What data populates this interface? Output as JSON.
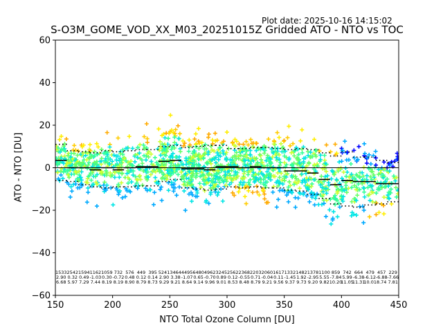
{
  "header": {
    "plot_date": "Plot date: 2025-10-16 14:15:02",
    "title": "S-O3M_GOME_VOD_XX_M03_20251015Z Gridded ATO - NTO vs TOC"
  },
  "colors": {
    "scatter_palette": [
      "#0000ff",
      "#00aaff",
      "#00e5e5",
      "#33ff99",
      "#66ff66",
      "#ccff33",
      "#ffee00",
      "#ffcc00",
      "#ffaa00"
    ],
    "median_line": "#000000",
    "percentile_line": "#000000",
    "zero_line": "#000000"
  },
  "chart_data": {
    "type": "scatter",
    "title": "S-O3M_GOME_VOD_XX_M03_20251015Z Gridded ATO - NTO vs TOC",
    "xlabel": "NTO Total Ozone Column [DU]",
    "ylabel": "ATO - NTO [DU]",
    "xlim": [
      150,
      450
    ],
    "ylim": [
      -60,
      60
    ],
    "xticks": [
      150,
      200,
      250,
      300,
      350,
      400,
      450
    ],
    "yticks": [
      -60,
      -40,
      -20,
      0,
      20,
      40,
      60
    ],
    "bin_width": 10,
    "bin_centers": [
      155,
      165,
      175,
      185,
      195,
      205,
      215,
      225,
      235,
      245,
      255,
      265,
      275,
      285,
      295,
      305,
      315,
      325,
      335,
      345,
      355,
      365,
      375,
      385,
      395,
      405,
      415,
      425,
      435,
      445
    ],
    "counts": [
      "1533",
      "2542",
      "1594",
      "1162",
      "1059",
      "732",
      "576",
      "449",
      "395",
      "5241",
      "3464",
      "4495",
      "6480",
      "4962",
      "3245",
      "2562",
      "2368",
      "2203",
      "2060",
      "1617",
      "1332",
      "1482",
      "1378",
      "1100",
      "859",
      "742",
      "664",
      "479",
      "457",
      "229"
    ],
    "means": [
      "2.90",
      "0.32",
      "0.49",
      "-1.03",
      "0.30",
      "-0.72",
      "0.48",
      "0.12",
      "0.14",
      "2.90",
      "3.38",
      "-1.07",
      "0.65",
      "-0.70",
      "0.89",
      "0.12",
      "-0.55",
      "0.71",
      "-0.04",
      "0.11",
      "-1.45",
      "1.92",
      "-2.95",
      "5.55",
      "-7.84",
      "5.99",
      "-6.38",
      "-6.12",
      "-6.88",
      "-7.66"
    ],
    "stdevs": [
      "6.68",
      "5.97",
      "7.29",
      "7.44",
      "8.19",
      "8.19",
      "8.90",
      "8.79",
      "8.73",
      "9.29",
      "9.21",
      "8.64",
      "9.14",
      "9.96",
      "9.01",
      "8.53",
      "8.48",
      "8.79",
      "9.21",
      "9.56",
      "9.37",
      "9.73",
      "9.20",
      "9.82",
      "10.20",
      "11.05",
      "11.31",
      "10.01",
      "8.74",
      "7.81"
    ],
    "median": [
      3.5,
      0.0,
      0.0,
      -1.0,
      0.0,
      -1.0,
      0.0,
      0.5,
      0.5,
      3.0,
      3.5,
      -0.5,
      -0.5,
      -1.0,
      0.5,
      0.5,
      0.0,
      0.5,
      0.0,
      0.0,
      -1.5,
      -1.5,
      -2.5,
      -5.5,
      -8.0,
      -6.0,
      -6.5,
      -6.5,
      -7.5,
      -7.5
    ],
    "p_upper": [
      11.0,
      8.0,
      7.5,
      7.0,
      8.0,
      7.5,
      8.0,
      8.5,
      8.5,
      10.0,
      10.5,
      9.5,
      10.0,
      10.5,
      10.5,
      9.0,
      9.0,
      9.5,
      9.5,
      9.0,
      8.5,
      9.0,
      8.5,
      7.0,
      5.5,
      7.5,
      5.0,
      5.0,
      3.5,
      2.5
    ],
    "p_lower": [
      -6.0,
      -6.5,
      -8.0,
      -9.0,
      -9.5,
      -9.0,
      -9.0,
      -8.5,
      -8.5,
      -6.5,
      -5.5,
      -9.5,
      -10.0,
      -10.5,
      -10.0,
      -9.0,
      -9.5,
      -9.0,
      -9.5,
      -9.5,
      -10.5,
      -11.0,
      -12.5,
      -14.5,
      -17.0,
      -18.0,
      -18.5,
      -17.5,
      -17.0,
      -16.0
    ]
  }
}
